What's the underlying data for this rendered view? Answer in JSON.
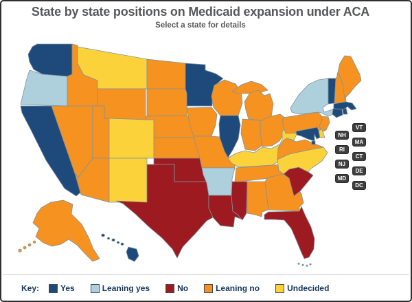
{
  "header": {
    "title": "State by state positions on Medicaid expansion under ACA",
    "subtitle": "Select a state for details"
  },
  "key": {
    "label": "Key:",
    "entries": [
      {
        "status": "yes",
        "label": "Yes",
        "color": "#1e4a7b"
      },
      {
        "status": "leaning_yes",
        "label": "Leaning yes",
        "color": "#aed0dc"
      },
      {
        "status": "no",
        "label": "No",
        "color": "#9d1b20"
      },
      {
        "status": "leaning_no",
        "label": "Leaning no",
        "color": "#f6921f"
      },
      {
        "status": "undecided",
        "label": "Undecided",
        "color": "#fcd23b"
      }
    ]
  },
  "small_state_labels": {
    "column1": [
      "NH",
      "RI",
      "NJ",
      "MD"
    ],
    "column2": [
      "VT",
      "MA",
      "CT",
      "DE",
      "DC"
    ]
  },
  "states": {
    "WA": "yes",
    "OR": "leaning_yes",
    "CA": "yes",
    "ID": "leaning_no",
    "NV": "leaning_no",
    "UT": "leaning_no",
    "AZ": "leaning_no",
    "MT": "undecided",
    "WY": "leaning_no",
    "CO": "undecided",
    "NM": "undecided",
    "ND": "leaning_no",
    "SD": "leaning_no",
    "NE": "leaning_no",
    "KS": "leaning_no",
    "OK": "no",
    "TX": "no",
    "MN": "yes",
    "IA": "leaning_no",
    "MO": "leaning_no",
    "AR": "leaning_yes",
    "LA": "no",
    "WI": "leaning_no",
    "IL": "yes",
    "MI": "leaning_no",
    "IN": "leaning_no",
    "OH": "leaning_no",
    "KY": "undecided",
    "TN": "leaning_no",
    "MS": "no",
    "AL": "leaning_no",
    "GA": "leaning_no",
    "FL": "no",
    "SC": "no",
    "NC": "undecided",
    "VA": "leaning_no",
    "WV": "undecided",
    "PA": "leaning_no",
    "NY": "leaning_yes",
    "NJ": "leaning_no",
    "VT": "yes",
    "NH": "leaning_no",
    "ME": "leaning_no",
    "MA": "yes",
    "RI": "yes",
    "CT": "yes",
    "DE": "undecided",
    "MD": "yes",
    "DC": "yes",
    "AK": "leaning_no",
    "HI": "yes"
  }
}
